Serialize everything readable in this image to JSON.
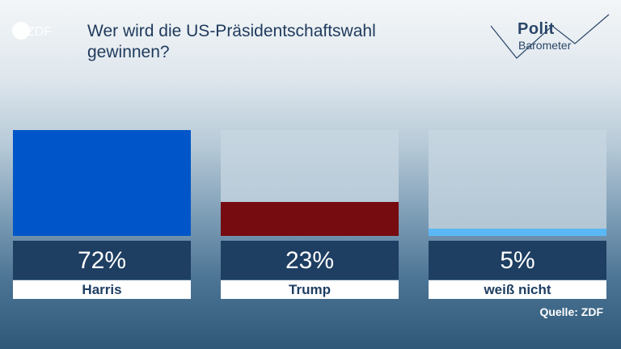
{
  "header": {
    "logo_text": "ZDF",
    "title": "Wer wird die US-Präsidentschaftswahl gewinnen?",
    "brand_title": "Polit",
    "brand_subtitle": "Barometer"
  },
  "colors": {
    "harris": "#0056c8",
    "trump": "#760c10",
    "unknown": "#5ab9f5",
    "value_box": "#1e3e62"
  },
  "chart_data": {
    "type": "bar",
    "categories": [
      "Harris",
      "Trump",
      "weiß nicht"
    ],
    "values": [
      72,
      23,
      5
    ],
    "value_labels": [
      "72%",
      "23%",
      "5%"
    ],
    "ylim": [
      0,
      72
    ],
    "title": "Wer wird die US-Präsidentschaftswahl gewinnen?",
    "xlabel": "",
    "ylabel": "",
    "grid": false,
    "legend": "none"
  },
  "footer": {
    "source": "Quelle: ZDF"
  }
}
